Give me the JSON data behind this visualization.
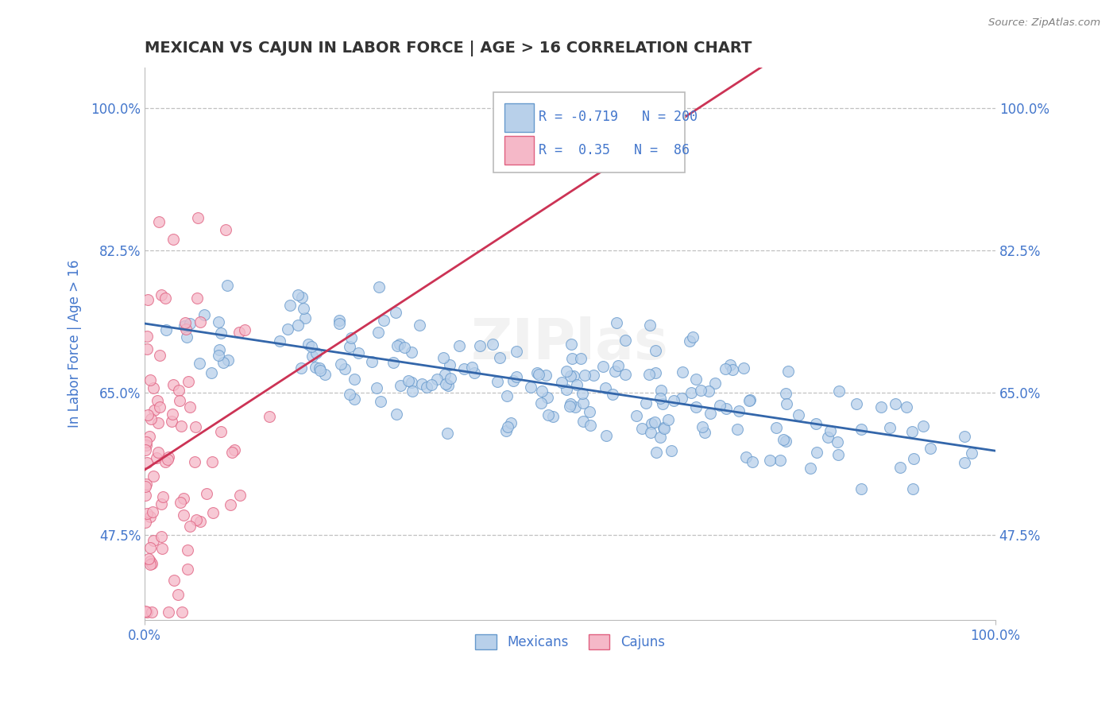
{
  "title": "MEXICAN VS CAJUN IN LABOR FORCE | AGE > 16 CORRELATION CHART",
  "source": "Source: ZipAtlas.com",
  "ylabel": "In Labor Force | Age > 16",
  "xlim": [
    0.0,
    1.0
  ],
  "ylim": [
    0.37,
    1.05
  ],
  "yticks": [
    0.475,
    0.65,
    0.825,
    1.0
  ],
  "ytick_labels": [
    "47.5%",
    "65.0%",
    "82.5%",
    "100.0%"
  ],
  "blue_R": -0.719,
  "blue_N": 200,
  "pink_R": 0.35,
  "pink_N": 86,
  "blue_fill": "#b8d0ea",
  "pink_fill": "#f5b8c8",
  "blue_edge": "#6699cc",
  "pink_edge": "#e06080",
  "blue_line": "#3366aa",
  "pink_line": "#cc3355",
  "legend_text_color": "#4477cc",
  "background_color": "#ffffff",
  "grid_color": "#bbbbbb",
  "title_color": "#333333",
  "seed": 42
}
